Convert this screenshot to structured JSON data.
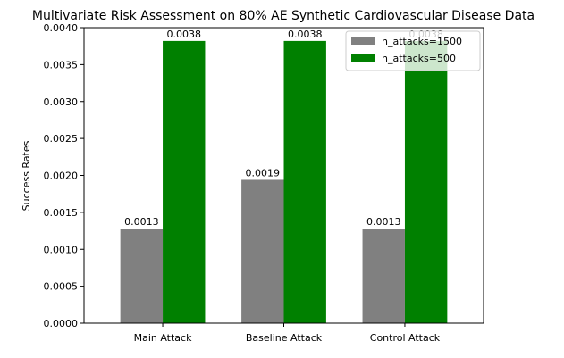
{
  "chart_data": {
    "type": "bar",
    "title": "Multivariate Risk Assessment on 80% AE Synthetic Cardiovascular Disease Data",
    "xlabel": "",
    "ylabel": "Success Rates",
    "categories": [
      "Main Attack",
      "Baseline Attack",
      "Control Attack"
    ],
    "series": [
      {
        "name": "n_attacks=1500",
        "color": "#808080",
        "values": [
          0.00128,
          0.00194,
          0.00128
        ],
        "labels": [
          "0.0013",
          "0.0019",
          "0.0013"
        ]
      },
      {
        "name": "n_attacks=500",
        "color": "#008000",
        "values": [
          0.00382,
          0.00382,
          0.00382
        ],
        "labels": [
          "0.0038",
          "0.0038",
          "0.0038"
        ]
      }
    ],
    "ylim": [
      0,
      0.004
    ],
    "yticks": [
      "0.0000",
      "0.0005",
      "0.0010",
      "0.0015",
      "0.0020",
      "0.0025",
      "0.0030",
      "0.0035",
      "0.0040"
    ],
    "grid": false,
    "legend_position": "top-right"
  }
}
